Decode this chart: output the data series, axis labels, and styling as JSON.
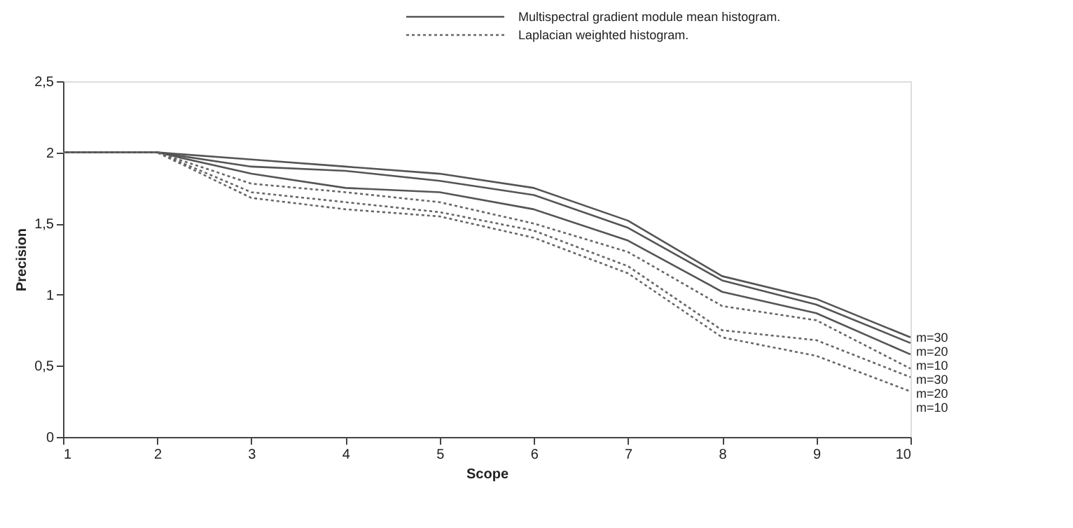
{
  "chart_data": {
    "type": "line",
    "xlabel": "Scope",
    "ylabel": "Precision",
    "x": [
      1,
      2,
      3,
      4,
      5,
      6,
      7,
      8,
      9,
      10
    ],
    "series": [
      {
        "name": "m=30",
        "color": "#555555",
        "line_style": "solid",
        "values": [
          2,
          2,
          1.95,
          1.9,
          1.85,
          1.75,
          1.52,
          1.13,
          0.97,
          0.7
        ]
      },
      {
        "name": "m=20",
        "color": "#555555",
        "line_style": "solid",
        "values": [
          2,
          2,
          1.9,
          1.87,
          1.8,
          1.7,
          1.47,
          1.1,
          0.93,
          0.66
        ]
      },
      {
        "name": "m=10",
        "color": "#555555",
        "line_style": "solid",
        "values": [
          2,
          2,
          1.85,
          1.75,
          1.72,
          1.6,
          1.38,
          1.02,
          0.87,
          0.58
        ]
      },
      {
        "name": "m=30",
        "color": "#666666",
        "line_style": "dotted",
        "values": [
          2,
          2,
          1.78,
          1.72,
          1.65,
          1.5,
          1.3,
          0.92,
          0.82,
          0.48
        ]
      },
      {
        "name": "m=20",
        "color": "#666666",
        "line_style": "dotted",
        "values": [
          2,
          2,
          1.72,
          1.65,
          1.58,
          1.45,
          1.2,
          0.75,
          0.68,
          0.42
        ]
      },
      {
        "name": "m=10",
        "color": "#666666",
        "line_style": "dotted",
        "values": [
          2,
          2,
          1.68,
          1.6,
          1.55,
          1.4,
          1.15,
          0.7,
          0.57,
          0.32
        ]
      }
    ],
    "annotations": [
      "Multispectral gradient module mean histogram.",
      "Laplacian weighted histogram."
    ],
    "xlim": [
      1,
      10
    ],
    "xticks": [
      1,
      2,
      3,
      4,
      5,
      6,
      7,
      8,
      9,
      10
    ],
    "ylim": [
      0,
      2.5
    ],
    "yticks": [
      0,
      {
        "value": 0.5,
        "label": "0,5"
      },
      1,
      {
        "value": 1.5,
        "label": "1,5"
      },
      2,
      {
        "value": 2.5,
        "label": "2,5"
      }
    ],
    "grid": false,
    "marker": "none"
  }
}
